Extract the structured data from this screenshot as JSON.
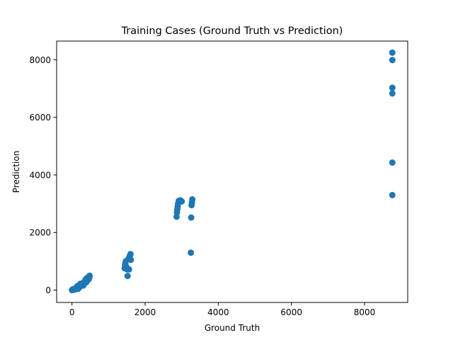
{
  "chart_data": {
    "type": "scatter",
    "title": "Training Cases (Ground Truth vs Prediction)",
    "xlabel": "Ground Truth",
    "ylabel": "Prediction",
    "xlim": [
      -420,
      9180
    ],
    "ylim": [
      -430,
      8650
    ],
    "xticks": [
      0,
      2000,
      4000,
      6000,
      8000
    ],
    "yticks": [
      0,
      2000,
      4000,
      6000,
      8000
    ],
    "grid": false,
    "marker_color": "#1f77b4",
    "points": [
      {
        "x": 0,
        "y": 0
      },
      {
        "x": 10,
        "y": 15
      },
      {
        "x": 20,
        "y": 5
      },
      {
        "x": 30,
        "y": 30
      },
      {
        "x": 40,
        "y": 10
      },
      {
        "x": 60,
        "y": 40
      },
      {
        "x": 80,
        "y": 20
      },
      {
        "x": 100,
        "y": 60
      },
      {
        "x": 120,
        "y": 90
      },
      {
        "x": 150,
        "y": 140
      },
      {
        "x": 160,
        "y": 40
      },
      {
        "x": 180,
        "y": 60
      },
      {
        "x": 200,
        "y": 100
      },
      {
        "x": 220,
        "y": 180
      },
      {
        "x": 230,
        "y": 220
      },
      {
        "x": 250,
        "y": 150
      },
      {
        "x": 270,
        "y": 200
      },
      {
        "x": 300,
        "y": 250
      },
      {
        "x": 310,
        "y": 160
      },
      {
        "x": 330,
        "y": 210
      },
      {
        "x": 350,
        "y": 300
      },
      {
        "x": 370,
        "y": 360
      },
      {
        "x": 390,
        "y": 270
      },
      {
        "x": 400,
        "y": 410
      },
      {
        "x": 420,
        "y": 330
      },
      {
        "x": 440,
        "y": 440
      },
      {
        "x": 460,
        "y": 380
      },
      {
        "x": 480,
        "y": 460
      },
      {
        "x": 480,
        "y": 500
      },
      {
        "x": 1440,
        "y": 760
      },
      {
        "x": 1450,
        "y": 850
      },
      {
        "x": 1460,
        "y": 920
      },
      {
        "x": 1470,
        "y": 1000
      },
      {
        "x": 1490,
        "y": 800
      },
      {
        "x": 1510,
        "y": 720
      },
      {
        "x": 1520,
        "y": 490
      },
      {
        "x": 1550,
        "y": 1100
      },
      {
        "x": 1560,
        "y": 720
      },
      {
        "x": 1580,
        "y": 1180
      },
      {
        "x": 1600,
        "y": 1250
      },
      {
        "x": 1610,
        "y": 1050
      },
      {
        "x": 2860,
        "y": 2550
      },
      {
        "x": 2870,
        "y": 2700
      },
      {
        "x": 2880,
        "y": 2800
      },
      {
        "x": 2890,
        "y": 2900
      },
      {
        "x": 2900,
        "y": 3000
      },
      {
        "x": 2920,
        "y": 3100
      },
      {
        "x": 2960,
        "y": 3120
      },
      {
        "x": 3000,
        "y": 3080
      },
      {
        "x": 3250,
        "y": 1300
      },
      {
        "x": 3260,
        "y": 2520
      },
      {
        "x": 3270,
        "y": 2950
      },
      {
        "x": 3280,
        "y": 3050
      },
      {
        "x": 3290,
        "y": 3150
      },
      {
        "x": 8760,
        "y": 8250
      },
      {
        "x": 8760,
        "y": 7990
      },
      {
        "x": 8760,
        "y": 7030
      },
      {
        "x": 8760,
        "y": 6830
      },
      {
        "x": 8760,
        "y": 4430
      },
      {
        "x": 8760,
        "y": 3300
      }
    ]
  }
}
